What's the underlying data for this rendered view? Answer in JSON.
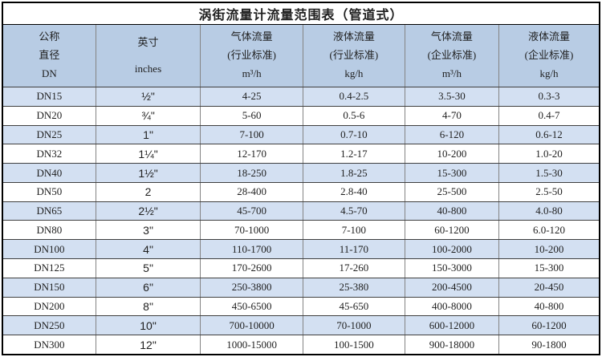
{
  "title": "涡街流量计流量范围表（管道式）",
  "table": {
    "columns": [
      {
        "lines": [
          "公称",
          "直径",
          "DN"
        ]
      },
      {
        "lines": [
          "英寸",
          "inches"
        ]
      },
      {
        "lines": [
          "气体流量",
          "(行业标准)",
          "m³/h"
        ]
      },
      {
        "lines": [
          "液体流量",
          "(行业标准)",
          "kg/h"
        ]
      },
      {
        "lines": [
          "气体流量",
          "(企业标准)",
          "m³/h"
        ]
      },
      {
        "lines": [
          "液体流量",
          "(企业标准)",
          "kg/h"
        ]
      }
    ],
    "rows": [
      [
        "DN15",
        "½\"",
        "4-25",
        "0.4-2.5",
        "3.5-30",
        "0.3-3"
      ],
      [
        "DN20",
        "¾\"",
        "5-60",
        "0.5-6",
        "4-70",
        "0.4-7"
      ],
      [
        "DN25",
        "1\"",
        "7-100",
        "0.7-10",
        "6-120",
        "0.6-12"
      ],
      [
        "DN32",
        "1¼\"",
        "12-170",
        "1.2-17",
        "10-200",
        "1.0-20"
      ],
      [
        "DN40",
        "1½\"",
        "18-250",
        "1.8-25",
        "15-300",
        "1.5-30"
      ],
      [
        "DN50",
        "2",
        "28-400",
        "2.8-40",
        "25-500",
        "2.5-50"
      ],
      [
        "DN65",
        "2½\"",
        "45-700",
        "4.5-70",
        "40-800",
        "4.0-80"
      ],
      [
        "DN80",
        "3\"",
        "70-1000",
        "7-100",
        "60-1200",
        "6.0-120"
      ],
      [
        "DN100",
        "4\"",
        "110-1700",
        "11-170",
        "100-2000",
        "10-200"
      ],
      [
        "DN125",
        "5\"",
        "170-2600",
        "17-260",
        "150-3000",
        "15-300"
      ],
      [
        "DN150",
        "6\"",
        "250-3800",
        "25-380",
        "200-4500",
        "20-450"
      ],
      [
        "DN200",
        "8\"",
        "450-6500",
        "45-650",
        "400-8000",
        "40-800"
      ],
      [
        "DN250",
        "10\"",
        "700-10000",
        "70-1000",
        "600-12000",
        "60-1200"
      ],
      [
        "DN300",
        "12\"",
        "1000-15000",
        "100-1500",
        "900-18000",
        "90-1800"
      ]
    ]
  },
  "colors": {
    "header_bg": "#b8cce4",
    "row_alt_bg": "#d3e0f2",
    "row_bg": "#ffffff",
    "border_outer": "#000000",
    "grid_horizontal": "#3f3f3f",
    "grid_vertical": "#848484",
    "text": "#1f1f1f"
  }
}
